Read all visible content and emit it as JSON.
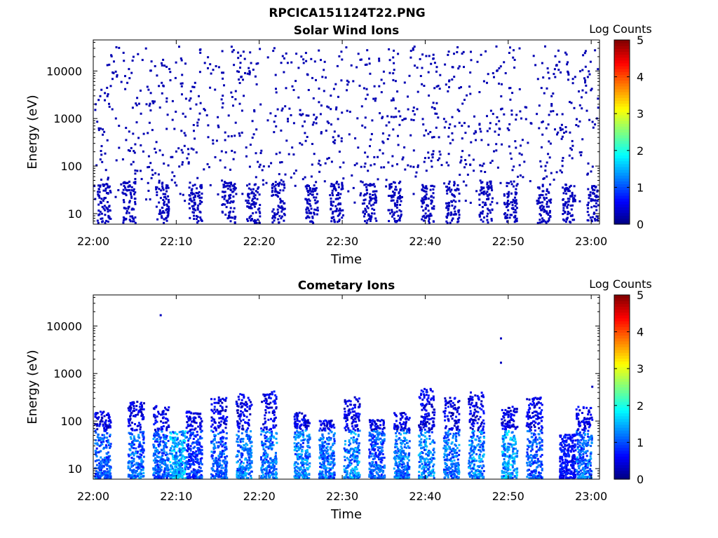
{
  "figure": {
    "title": "RPCICA151124T22.PNG"
  },
  "chart_data": [
    {
      "type": "heatmap",
      "title": "Solar Wind Ions",
      "xlabel": "Time",
      "ylabel": "Energy (eV)",
      "x_ticks": [
        "22:00",
        "22:10",
        "22:20",
        "22:30",
        "22:40",
        "22:50",
        "23:00"
      ],
      "xlim": [
        "22:00",
        "23:01"
      ],
      "y_scale": "log",
      "y_ticks": [
        10,
        100,
        1000,
        10000
      ],
      "ylim": [
        6,
        45000
      ],
      "colorbar": {
        "label": "Log Counts",
        "ticks": [
          0,
          1,
          2,
          3,
          4,
          5
        ],
        "range": [
          0,
          5
        ],
        "colormap": "jet"
      },
      "description_of_data": "sparse single counts (log counts ~0-0.5) scattered from ~100 eV to ~30000 eV; low-energy bursts (~6-50 eV) roughly every 3-4 minutes",
      "low_energy_bursts": [
        {
          "time": "22:01",
          "e_min": 6,
          "e_max": 40,
          "level": 0.3
        },
        {
          "time": "22:04",
          "e_min": 6,
          "e_max": 45,
          "level": 0.3
        },
        {
          "time": "22:08",
          "e_min": 6,
          "e_max": 45,
          "level": 0.3
        },
        {
          "time": "22:12",
          "e_min": 6,
          "e_max": 40,
          "level": 0.3
        },
        {
          "time": "22:16",
          "e_min": 6,
          "e_max": 45,
          "level": 0.3
        },
        {
          "time": "22:19",
          "e_min": 6,
          "e_max": 40,
          "level": 0.3
        },
        {
          "time": "22:22",
          "e_min": 6,
          "e_max": 45,
          "level": 0.3
        },
        {
          "time": "22:26",
          "e_min": 6,
          "e_max": 40,
          "level": 0.3
        },
        {
          "time": "22:29",
          "e_min": 6,
          "e_max": 45,
          "level": 0.3
        },
        {
          "time": "22:33",
          "e_min": 6,
          "e_max": 40,
          "level": 0.3
        },
        {
          "time": "22:36",
          "e_min": 6,
          "e_max": 45,
          "level": 0.3
        },
        {
          "time": "22:40",
          "e_min": 6,
          "e_max": 40,
          "level": 0.3
        },
        {
          "time": "22:43",
          "e_min": 6,
          "e_max": 45,
          "level": 0.3
        },
        {
          "time": "22:47",
          "e_min": 6,
          "e_max": 50,
          "level": 0.3
        },
        {
          "time": "22:50",
          "e_min": 6,
          "e_max": 45,
          "level": 0.3
        },
        {
          "time": "22:54",
          "e_min": 6,
          "e_max": 40,
          "level": 0.3
        },
        {
          "time": "22:57",
          "e_min": 6,
          "e_max": 40,
          "level": 0.3
        },
        {
          "time": "23:00",
          "e_min": 6,
          "e_max": 40,
          "level": 0.3
        }
      ]
    },
    {
      "type": "heatmap",
      "title": "Cometary Ions",
      "xlabel": "Time",
      "ylabel": "Energy (eV)",
      "x_ticks": [
        "22:00",
        "22:10",
        "22:20",
        "22:30",
        "22:40",
        "22:50",
        "23:00"
      ],
      "xlim": [
        "22:00",
        "23:01"
      ],
      "y_scale": "log",
      "y_ticks": [
        10,
        100,
        1000,
        10000
      ],
      "ylim": [
        6,
        45000
      ],
      "colorbar": {
        "label": "Log Counts",
        "ticks": [
          0,
          1,
          2,
          3,
          4,
          5
        ],
        "range": [
          0,
          5
        ],
        "colormap": "jet"
      },
      "description_of_data": "periodic ion bursts, ~6-400 eV, peak log counts ~1.5-2 near 10-40 eV",
      "bursts": [
        {
          "time": "22:01",
          "e_min": 6,
          "e_max": 150,
          "peak": 1.4
        },
        {
          "time": "22:05",
          "e_min": 6,
          "e_max": 250,
          "peak": 1.5
        },
        {
          "time": "22:08",
          "e_min": 6,
          "e_max": 200,
          "peak": 1.5
        },
        {
          "time": "22:10",
          "e_min": 6,
          "e_max": 60,
          "peak": 1.9
        },
        {
          "time": "22:12",
          "e_min": 6,
          "e_max": 150,
          "peak": 1.2
        },
        {
          "time": "22:15",
          "e_min": 6,
          "e_max": 300,
          "peak": 1.4
        },
        {
          "time": "22:18",
          "e_min": 6,
          "e_max": 350,
          "peak": 1.6
        },
        {
          "time": "22:21",
          "e_min": 6,
          "e_max": 400,
          "peak": 1.6
        },
        {
          "time": "22:25",
          "e_min": 6,
          "e_max": 150,
          "peak": 1.7
        },
        {
          "time": "22:28",
          "e_min": 6,
          "e_max": 100,
          "peak": 1.5
        },
        {
          "time": "22:31",
          "e_min": 6,
          "e_max": 300,
          "peak": 1.7
        },
        {
          "time": "22:34",
          "e_min": 6,
          "e_max": 100,
          "peak": 1.4
        },
        {
          "time": "22:37",
          "e_min": 6,
          "e_max": 150,
          "peak": 1.6
        },
        {
          "time": "22:40",
          "e_min": 6,
          "e_max": 450,
          "peak": 1.7
        },
        {
          "time": "22:43",
          "e_min": 6,
          "e_max": 300,
          "peak": 1.6
        },
        {
          "time": "22:46",
          "e_min": 6,
          "e_max": 400,
          "peak": 1.7
        },
        {
          "time": "22:50",
          "e_min": 6,
          "e_max": 200,
          "peak": 1.9
        },
        {
          "time": "22:53",
          "e_min": 6,
          "e_max": 300,
          "peak": 1.4
        },
        {
          "time": "22:57",
          "e_min": 6,
          "e_max": 50,
          "peak": 0.9
        },
        {
          "time": "22:59",
          "e_min": 6,
          "e_max": 200,
          "peak": 1.5
        }
      ],
      "isolated_points": [
        {
          "time": "22:08",
          "energy": 16000,
          "level": 0.3
        },
        {
          "time": "22:49",
          "energy": 5200,
          "level": 0.3
        },
        {
          "time": "22:49",
          "energy": 1600,
          "level": 0.3
        },
        {
          "time": "23:00",
          "energy": 500,
          "level": 0.3
        }
      ]
    }
  ]
}
